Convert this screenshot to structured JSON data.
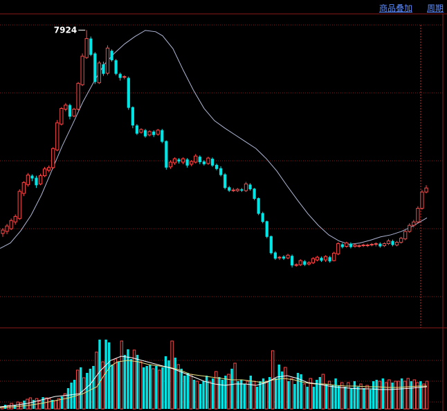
{
  "toolbar": {
    "overlay_label": "商品叠加",
    "period_label": "周期"
  },
  "colors": {
    "background": "#000000",
    "grid": "#8b1a1a",
    "up": "#ff4a4a",
    "down": "#00e5e5",
    "ma": "#b0b8d8",
    "vol_ma_yellow": "#e8e080",
    "vol_ma_white": "#ffffff",
    "crosshair": "#c83232"
  },
  "chart_data": {
    "type": "candlestick",
    "peak_label": "7924",
    "y_range": [
      3300,
      8400
    ],
    "candles": [
      [
        4930,
        4980,
        4880,
        5010
      ],
      [
        4960,
        5040,
        4920,
        5070
      ],
      [
        5000,
        5120,
        4980,
        5150
      ],
      [
        5100,
        5180,
        5060,
        5210
      ],
      [
        5150,
        5550,
        5130,
        5580
      ],
      [
        5520,
        5680,
        5480,
        5700
      ],
      [
        5650,
        5790,
        5620,
        5820
      ],
      [
        5780,
        5740,
        5700,
        5800
      ],
      [
        5750,
        5640,
        5600,
        5780
      ],
      [
        5660,
        5780,
        5640,
        5810
      ],
      [
        5780,
        5880,
        5760,
        5910
      ],
      [
        5860,
        5900,
        5830,
        5930
      ],
      [
        5900,
        6180,
        5880,
        6200
      ],
      [
        6160,
        6560,
        6140,
        6600
      ],
      [
        6540,
        6770,
        6520,
        6790
      ],
      [
        6760,
        6820,
        6730,
        6850
      ],
      [
        6820,
        6650,
        6610,
        6840
      ],
      [
        6660,
        6760,
        6640,
        6780
      ],
      [
        6760,
        7140,
        6740,
        7160
      ],
      [
        7120,
        7540,
        7100,
        7580
      ],
      [
        7520,
        7800,
        7500,
        7924
      ],
      [
        7800,
        7560,
        7540,
        7830
      ],
      [
        7580,
        7160,
        7130,
        7600
      ],
      [
        7150,
        7440,
        7130,
        7470
      ],
      [
        7420,
        7280,
        7250,
        7460
      ],
      [
        7290,
        7660,
        7260,
        7700
      ],
      [
        7620,
        7480,
        7460,
        7640
      ],
      [
        7480,
        7280,
        7260,
        7500
      ],
      [
        7280,
        7220,
        7180,
        7300
      ],
      [
        7230,
        7240,
        7200,
        7260
      ],
      [
        7220,
        6780,
        6750,
        7240
      ],
      [
        6790,
        6520,
        6480,
        6800
      ],
      [
        6520,
        6400,
        6380,
        6540
      ],
      [
        6420,
        6460,
        6400,
        6480
      ],
      [
        6450,
        6360,
        6340,
        6470
      ],
      [
        6380,
        6430,
        6360,
        6450
      ],
      [
        6430,
        6380,
        6350,
        6450
      ],
      [
        6390,
        6450,
        6370,
        6470
      ],
      [
        6450,
        6280,
        6260,
        6470
      ],
      [
        6290,
        5900,
        5870,
        6300
      ],
      [
        5910,
        5980,
        5880,
        6010
      ],
      [
        5970,
        6030,
        5940,
        6050
      ],
      [
        6020,
        5990,
        5960,
        6040
      ],
      [
        5980,
        6030,
        5950,
        6050
      ],
      [
        6020,
        5930,
        5900,
        6040
      ],
      [
        5950,
        5990,
        5920,
        6010
      ],
      [
        5980,
        6070,
        5960,
        6100
      ],
      [
        6060,
        5980,
        5950,
        6080
      ],
      [
        5990,
        5950,
        5930,
        6010
      ],
      [
        5960,
        6040,
        5940,
        6060
      ],
      [
        6030,
        5930,
        5910,
        6050
      ],
      [
        5940,
        5880,
        5860,
        5960
      ],
      [
        5890,
        5790,
        5770,
        5920
      ],
      [
        5800,
        5600,
        5580,
        5820
      ],
      [
        5610,
        5560,
        5540,
        5630
      ],
      [
        5570,
        5570,
        5540,
        5600
      ],
      [
        5560,
        5580,
        5540,
        5600
      ],
      [
        5580,
        5560,
        5540,
        5600
      ],
      [
        5560,
        5660,
        5540,
        5690
      ],
      [
        5650,
        5580,
        5560,
        5670
      ],
      [
        5590,
        5440,
        5420,
        5600
      ],
      [
        5450,
        5220,
        5200,
        5460
      ],
      [
        5230,
        5100,
        5080,
        5250
      ],
      [
        5110,
        4880,
        4860,
        5120
      ],
      [
        4890,
        4640,
        4620,
        4900
      ],
      [
        4650,
        4560,
        4540,
        4670
      ],
      [
        4570,
        4580,
        4540,
        4600
      ],
      [
        4590,
        4560,
        4540,
        4610
      ],
      [
        4570,
        4610,
        4550,
        4630
      ],
      [
        4600,
        4460,
        4430,
        4620
      ],
      [
        4470,
        4470,
        4440,
        4490
      ],
      [
        4470,
        4530,
        4450,
        4550
      ],
      [
        4520,
        4470,
        4450,
        4540
      ],
      [
        4480,
        4500,
        4460,
        4520
      ],
      [
        4500,
        4560,
        4480,
        4580
      ],
      [
        4540,
        4580,
        4520,
        4600
      ],
      [
        4570,
        4530,
        4510,
        4590
      ],
      [
        4540,
        4590,
        4510,
        4610
      ],
      [
        4580,
        4520,
        4500,
        4600
      ],
      [
        4530,
        4640,
        4520,
        4660
      ],
      [
        4630,
        4780,
        4610,
        4800
      ],
      [
        4770,
        4730,
        4710,
        4790
      ],
      [
        4740,
        4790,
        4720,
        4810
      ],
      [
        4780,
        4730,
        4710,
        4800
      ],
      [
        4740,
        4760,
        4720,
        4780
      ],
      [
        4750,
        4750,
        4720,
        4770
      ],
      [
        4750,
        4760,
        4730,
        4780
      ],
      [
        4760,
        4760,
        4730,
        4780
      ],
      [
        4760,
        4770,
        4740,
        4790
      ],
      [
        4770,
        4780,
        4740,
        4800
      ],
      [
        4780,
        4740,
        4720,
        4800
      ],
      [
        4750,
        4780,
        4730,
        4800
      ],
      [
        4780,
        4820,
        4760,
        4850
      ],
      [
        4820,
        4760,
        4740,
        4840
      ],
      [
        4760,
        4800,
        4740,
        4820
      ],
      [
        4800,
        4860,
        4780,
        4880
      ],
      [
        4850,
        4960,
        4830,
        4990
      ],
      [
        4960,
        5050,
        4940,
        5080
      ],
      [
        5050,
        5100,
        5020,
        5130
      ],
      [
        5100,
        5300,
        5080,
        5330
      ],
      [
        5300,
        5540,
        5280,
        5570
      ],
      [
        5540,
        5600,
        5520,
        5640
      ]
    ],
    "ma": [
      [
        0,
        4710
      ],
      [
        15,
        4790
      ],
      [
        30,
        4970
      ],
      [
        45,
        5200
      ],
      [
        60,
        5500
      ],
      [
        75,
        5860
      ],
      [
        90,
        6220
      ],
      [
        105,
        6540
      ],
      [
        120,
        6870
      ],
      [
        135,
        7150
      ],
      [
        150,
        7410
      ],
      [
        165,
        7580
      ],
      [
        180,
        7720
      ],
      [
        195,
        7830
      ],
      [
        210,
        7920
      ],
      [
        225,
        7900
      ],
      [
        235,
        7840
      ],
      [
        250,
        7650
      ],
      [
        265,
        7330
      ],
      [
        280,
        7030
      ],
      [
        295,
        6770
      ],
      [
        310,
        6590
      ],
      [
        325,
        6480
      ],
      [
        340,
        6380
      ],
      [
        355,
        6280
      ],
      [
        370,
        6180
      ],
      [
        385,
        6030
      ],
      [
        400,
        5850
      ],
      [
        415,
        5630
      ],
      [
        430,
        5420
      ],
      [
        445,
        5220
      ],
      [
        460,
        5050
      ],
      [
        475,
        4910
      ],
      [
        490,
        4820
      ],
      [
        505,
        4770
      ],
      [
        520,
        4790
      ],
      [
        535,
        4830
      ],
      [
        550,
        4880
      ],
      [
        565,
        4910
      ],
      [
        580,
        4960
      ],
      [
        595,
        5030
      ],
      [
        607,
        5100
      ],
      [
        617,
        5160
      ]
    ],
    "volume": [
      3,
      6,
      5,
      8,
      6,
      10,
      9,
      12,
      14,
      16,
      13,
      15,
      11,
      17,
      16,
      15,
      13,
      12,
      15,
      18,
      22,
      30,
      38,
      42,
      56,
      60,
      45,
      52,
      58,
      62,
      82,
      100,
      68,
      100,
      96,
      64,
      72,
      68,
      98,
      78,
      86,
      72,
      85,
      78,
      68,
      60,
      62,
      64,
      58,
      62,
      56,
      60,
      76,
      70,
      98,
      74,
      64,
      58,
      48,
      52,
      50,
      42,
      40,
      36,
      40,
      48,
      40,
      44,
      54,
      46,
      42,
      48,
      50,
      58,
      66,
      40,
      42,
      36,
      40,
      48,
      40,
      32,
      40,
      44,
      40,
      46,
      84,
      44,
      64,
      54,
      60,
      40,
      44,
      36,
      52,
      50,
      36,
      32,
      44,
      32,
      42,
      46,
      50,
      36,
      40,
      34,
      44,
      34,
      38,
      32,
      38,
      30,
      40,
      32,
      36,
      30,
      34,
      28,
      40,
      42,
      40,
      44,
      38,
      42,
      38,
      40,
      40,
      44,
      40,
      44,
      40,
      42,
      38,
      40,
      36,
      40
    ],
    "vol_ma_yellow": [
      [
        0,
        2
      ],
      [
        20,
        3
      ],
      [
        40,
        5
      ],
      [
        60,
        8
      ],
      [
        80,
        12
      ],
      [
        100,
        16
      ],
      [
        120,
        22
      ],
      [
        140,
        32
      ],
      [
        150,
        48
      ],
      [
        160,
        62
      ],
      [
        170,
        68
      ],
      [
        185,
        70
      ],
      [
        200,
        68
      ],
      [
        215,
        64
      ],
      [
        230,
        62
      ],
      [
        245,
        60
      ],
      [
        260,
        56
      ],
      [
        275,
        50
      ],
      [
        290,
        48
      ],
      [
        305,
        46
      ],
      [
        320,
        44
      ],
      [
        335,
        42
      ],
      [
        350,
        42
      ],
      [
        365,
        40
      ],
      [
        380,
        38
      ],
      [
        395,
        42
      ],
      [
        410,
        44
      ],
      [
        425,
        42
      ],
      [
        440,
        38
      ],
      [
        455,
        36
      ],
      [
        470,
        36
      ],
      [
        485,
        34
      ],
      [
        500,
        33
      ],
      [
        515,
        33
      ],
      [
        530,
        32
      ],
      [
        545,
        32
      ],
      [
        560,
        31
      ],
      [
        575,
        31
      ],
      [
        590,
        32
      ],
      [
        605,
        33
      ],
      [
        617,
        33
      ]
    ],
    "vol_ma_white": [
      [
        0,
        3
      ],
      [
        20,
        5
      ],
      [
        40,
        8
      ],
      [
        60,
        13
      ],
      [
        80,
        18
      ],
      [
        100,
        20
      ],
      [
        115,
        22
      ],
      [
        130,
        35
      ],
      [
        145,
        55
      ],
      [
        160,
        70
      ],
      [
        175,
        76
      ],
      [
        190,
        74
      ],
      [
        205,
        70
      ],
      [
        220,
        66
      ],
      [
        235,
        62
      ],
      [
        250,
        58
      ],
      [
        265,
        52
      ],
      [
        280,
        46
      ],
      [
        295,
        40
      ],
      [
        310,
        36
      ],
      [
        325,
        34
      ],
      [
        340,
        36
      ],
      [
        355,
        36
      ],
      [
        370,
        34
      ],
      [
        385,
        38
      ],
      [
        400,
        46
      ],
      [
        415,
        48
      ],
      [
        430,
        44
      ],
      [
        445,
        38
      ],
      [
        460,
        36
      ],
      [
        475,
        33
      ],
      [
        490,
        31
      ],
      [
        505,
        30
      ],
      [
        520,
        29
      ],
      [
        535,
        29
      ],
      [
        550,
        28
      ],
      [
        565,
        28
      ],
      [
        580,
        29
      ],
      [
        595,
        30
      ],
      [
        605,
        31
      ],
      [
        617,
        32
      ]
    ],
    "grid_prices": [
      8000,
      7000,
      6000,
      5000,
      4000
    ],
    "grid": true
  }
}
